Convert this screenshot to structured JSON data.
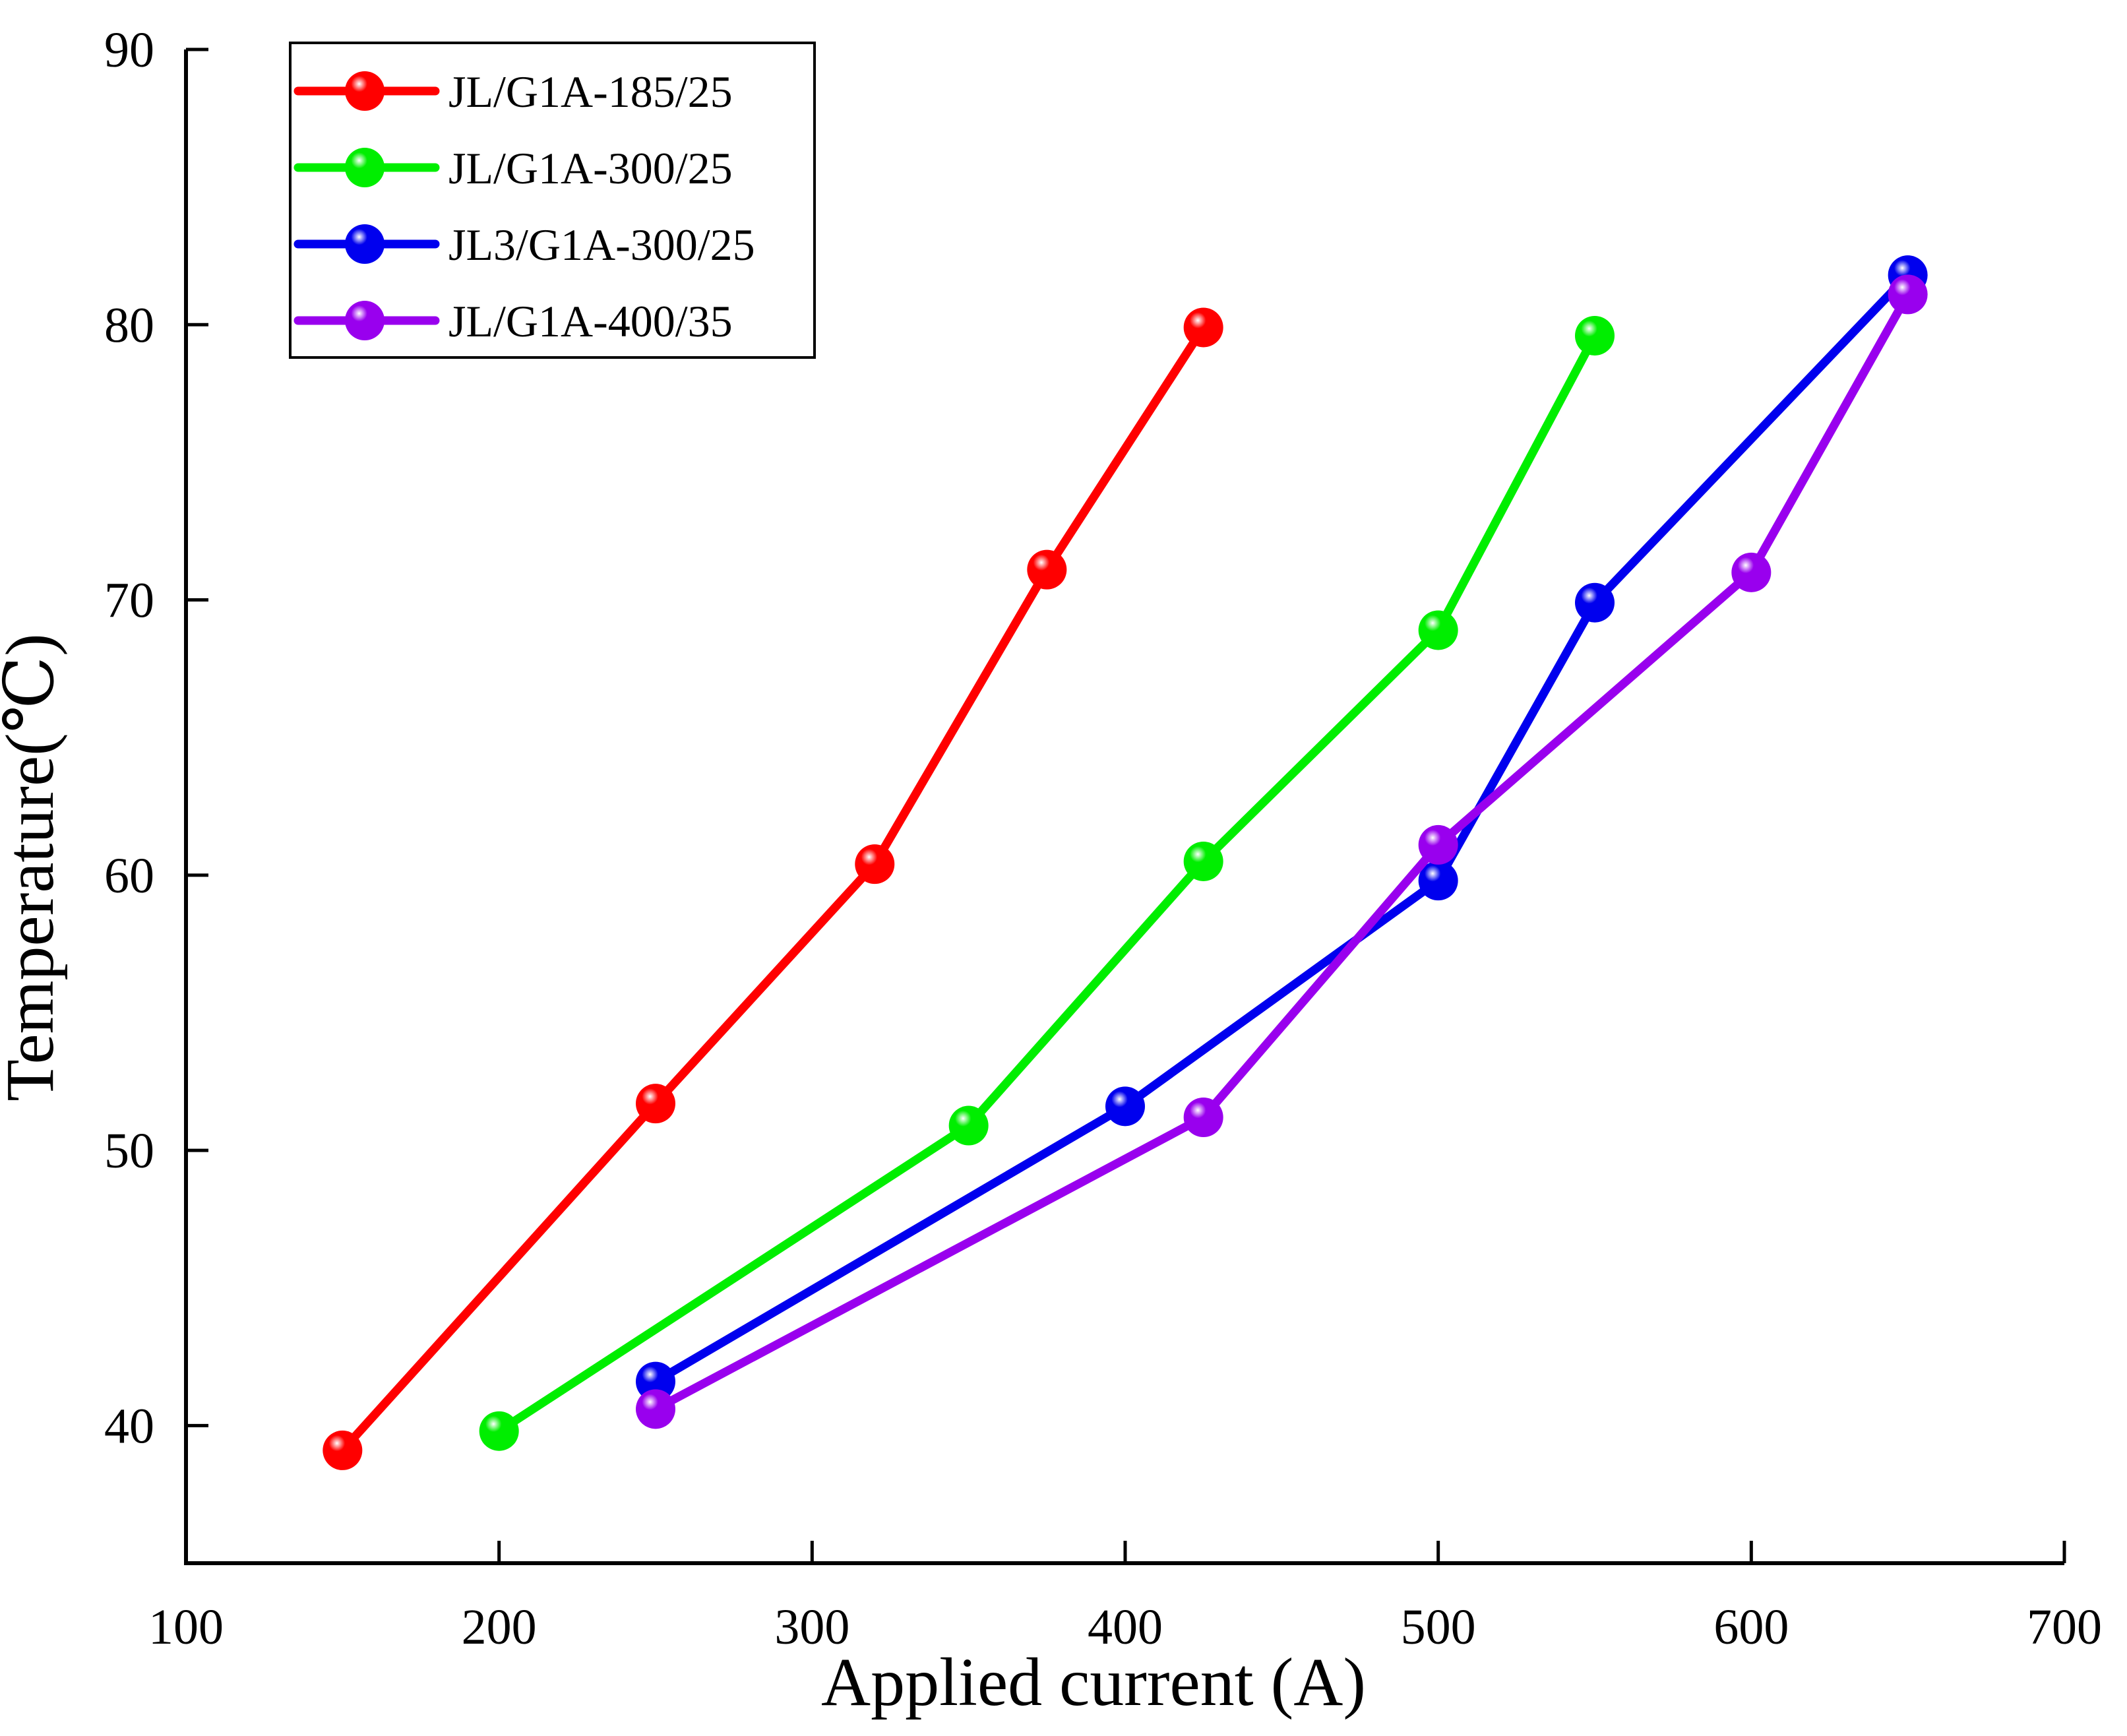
{
  "chart_data": {
    "type": "line",
    "title": "",
    "xlabel": "Applied current (A)",
    "ylabel": "Temperature(℃)",
    "xlim": [
      100,
      700
    ],
    "ylim": [
      35,
      90
    ],
    "xticks": [
      100,
      200,
      300,
      400,
      500,
      600,
      700
    ],
    "yticks": [
      40,
      50,
      60,
      70,
      80,
      90
    ],
    "grid": false,
    "legend_position": "top-left",
    "series": [
      {
        "name": "JL/G1A-185/25",
        "color": "#ff0000",
        "x": [
          150,
          250,
          320,
          375,
          425
        ],
        "y": [
          39.1,
          51.7,
          60.4,
          71.1,
          79.9
        ]
      },
      {
        "name": "JL/G1A-300/25",
        "color": "#00ee00",
        "x": [
          200,
          350,
          425,
          500,
          550
        ],
        "y": [
          39.8,
          50.9,
          60.5,
          68.9,
          79.6
        ]
      },
      {
        "name": "JL3/G1A-300/25",
        "color": "#0000ee",
        "x": [
          250,
          400,
          500,
          550,
          650
        ],
        "y": [
          41.6,
          51.6,
          59.8,
          69.9,
          81.8
        ]
      },
      {
        "name": "JL/G1A-400/35",
        "color": "#9900ee",
        "x": [
          250,
          425,
          500,
          600,
          650
        ],
        "y": [
          40.6,
          51.2,
          61.1,
          71.0,
          81.1
        ]
      }
    ]
  }
}
